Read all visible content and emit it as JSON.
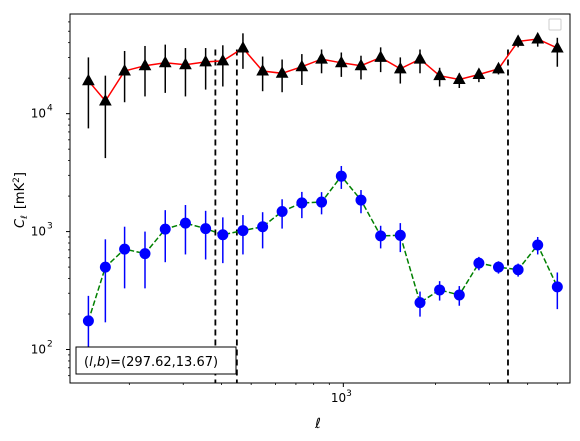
{
  "chart_data": {
    "type": "scatter",
    "title": "",
    "xlabel": "ℓ",
    "ylabel_main": "C",
    "ylabel_sub": "ℓ",
    "ylabel_unit_pre": "[mK",
    "ylabel_unit_sup": "2",
    "ylabel_unit_post": "]",
    "xscale": "log",
    "yscale": "log",
    "xlim": [
      128,
      5500
    ],
    "ylim": [
      52,
      70000
    ],
    "x_tick_labels": [
      {
        "base": "10",
        "exp": "3",
        "value": 1000
      }
    ],
    "y_tick_labels": [
      {
        "base": "10",
        "exp": "2",
        "value": 100
      },
      {
        "base": "10",
        "exp": "3",
        "value": 1000
      },
      {
        "base": "10",
        "exp": "4",
        "value": 10000
      }
    ],
    "vlines": [
      382,
      449,
      3450
    ],
    "legend_position": "top-right",
    "annotation": {
      "prefix": "(",
      "l": "l",
      "comma": ",",
      "b": "b",
      "suffix": ")=(297.62,13.67)"
    },
    "series": [
      {
        "color": "#e41a1c",
        "marker": "triangle",
        "x": [
          147,
          167,
          193,
          225,
          262,
          305,
          355,
          404,
          470,
          545,
          631,
          732,
          849,
          985,
          1142,
          1324,
          1535,
          1780,
          2063,
          2392,
          2772,
          3212,
          3723,
          4314,
          5000
        ],
        "y": [
          19000,
          12800,
          23000,
          25500,
          27000,
          26000,
          27500,
          28000,
          36000,
          23000,
          22000,
          25000,
          29000,
          27000,
          25500,
          30000,
          24000,
          29000,
          21000,
          19500,
          21500,
          24000,
          41000,
          43000,
          36000
        ],
        "yerr_low": [
          11500,
          8600,
          10500,
          11500,
          12000,
          12000,
          11500,
          11000,
          12000,
          7500,
          6800,
          7500,
          7000,
          6500,
          6000,
          7500,
          6000,
          7000,
          4000,
          3000,
          3000,
          2500,
          4500,
          6000,
          11000
        ],
        "yerr_high": [
          11000,
          8200,
          11000,
          12000,
          11500,
          10000,
          8500,
          10000,
          12000,
          7500,
          6800,
          7000,
          6000,
          6000,
          5500,
          6500,
          6000,
          6000,
          3500,
          2500,
          2500,
          2500,
          4000,
          5000,
          8000
        ]
      },
      {
        "color": "#0000ff",
        "marker": "circle",
        "x": [
          147,
          167,
          193,
          225,
          262,
          305,
          355,
          404,
          470,
          545,
          631,
          732,
          849,
          985,
          1142,
          1324,
          1535,
          1780,
          2063,
          2392,
          2772,
          3212,
          3723,
          4314,
          5000
        ],
        "y": [
          175,
          500,
          710,
          650,
          1050,
          1180,
          1060,
          940,
          1020,
          1100,
          1480,
          1750,
          1780,
          2950,
          1850,
          920,
          930,
          250,
          320,
          290,
          540,
          500,
          475,
          770,
          340
        ],
        "yerr_low": [
          85,
          330,
          380,
          320,
          500,
          540,
          480,
          400,
          380,
          380,
          420,
          450,
          380,
          650,
          420,
          200,
          260,
          60,
          60,
          55,
          70,
          60,
          60,
          130,
          120
        ],
        "yerr_high": [
          110,
          360,
          390,
          350,
          470,
          500,
          440,
          380,
          360,
          360,
          400,
          420,
          380,
          650,
          400,
          200,
          250,
          60,
          60,
          55,
          70,
          60,
          60,
          130,
          110
        ]
      }
    ]
  }
}
